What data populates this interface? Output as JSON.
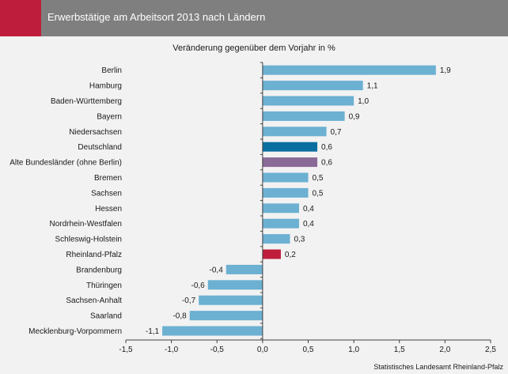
{
  "header": {
    "title": "Erwerbstätige am Arbeitsort 2013 nach Ländern"
  },
  "source_note": "Statistisches Landesamt Rheinland-Pfalz",
  "colors": {
    "header_bg": "#7f7f7f",
    "accent": "#be1e3c",
    "bar_default": "#6cb0d2",
    "bar_deutschland": "#0a6fa0",
    "bar_alte_bundeslaender": "#8a6a97",
    "bar_rheinland_pfalz": "#be1e3c"
  },
  "chart_data": {
    "type": "bar",
    "orientation": "horizontal",
    "title": "Veränderung gegenüber dem Vorjahr in %",
    "categories": [
      "Berlin",
      "Hamburg",
      "Baden-Württemberg",
      "Bayern",
      "Niedersachsen",
      "Deutschland",
      "Alte Bundesländer (ohne Berlin)",
      "Bremen",
      "Sachsen",
      "Hessen",
      "Nordrhein-Westfalen",
      "Schleswig-Holstein",
      "Rheinland-Pfalz",
      "Brandenburg",
      "Thüringen",
      "Sachsen-Anhalt",
      "Saarland",
      "Mecklenburg-Vorpommern"
    ],
    "values": [
      1.9,
      1.1,
      1.0,
      0.9,
      0.7,
      0.6,
      0.6,
      0.5,
      0.5,
      0.4,
      0.4,
      0.3,
      0.2,
      -0.4,
      -0.6,
      -0.7,
      -0.8,
      -1.1
    ],
    "value_labels": [
      "1,9",
      "1,1",
      "1,0",
      "0,9",
      "0,7",
      "0,6",
      "0,6",
      "0,5",
      "0,5",
      "0,4",
      "0,4",
      "0,3",
      "0,2",
      "-0,4",
      "-0,6",
      "-0,7",
      "-0,8",
      "-1,1"
    ],
    "highlight": {
      "Deutschland": "#0a6fa0",
      "Alte Bundesländer (ohne Berlin)": "#8a6a97",
      "Rheinland-Pfalz": "#be1e3c"
    },
    "xlim": [
      -1.5,
      2.5
    ],
    "xticks": [
      -1.5,
      -1.0,
      -0.5,
      0.0,
      0.5,
      1.0,
      1.5,
      2.0,
      2.5
    ],
    "xtick_labels": [
      "-1,5",
      "-1,0",
      "-0,5",
      "0,0",
      "0,5",
      "1,0",
      "1,5",
      "2,0",
      "2,5"
    ],
    "grid": false,
    "legend": "none"
  }
}
